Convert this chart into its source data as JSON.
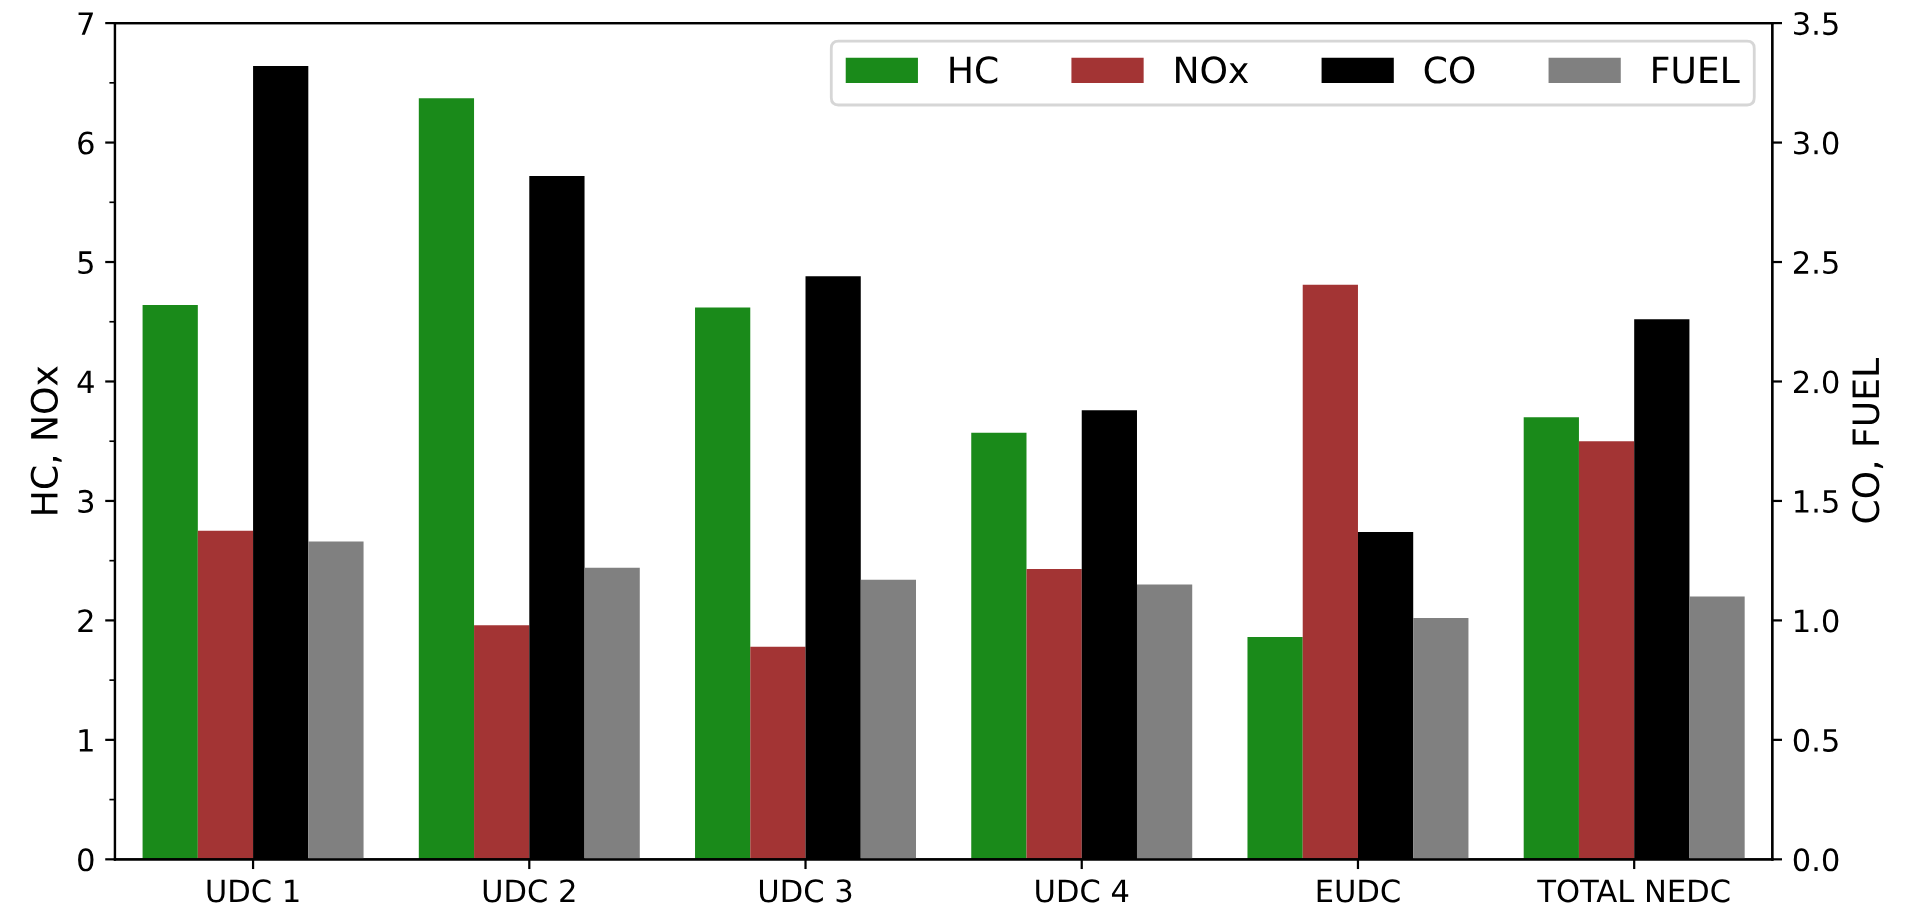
{
  "chart_data": {
    "type": "bar",
    "ylabel": "HC, NOx",
    "y2label": "CO, FUEL",
    "categories": [
      "UDC 1",
      "UDC 2",
      "UDC 3",
      "UDC 4",
      "EUDC",
      "TOTAL NEDC"
    ],
    "series": [
      {
        "name": "HC",
        "color": "#1a8a1a",
        "values": [
          4.64,
          6.37,
          4.62,
          3.57,
          1.86,
          3.7
        ]
      },
      {
        "name": "NOx",
        "color": "#a33434",
        "values": [
          2.75,
          1.96,
          1.78,
          2.43,
          4.81,
          3.5
        ]
      },
      {
        "name": "CO",
        "color": "#000000",
        "axis": "y2",
        "values": [
          3.32,
          2.86,
          2.44,
          1.88,
          1.37,
          2.26
        ]
      },
      {
        "name": "FUEL",
        "color": "#808080",
        "axis": "y2",
        "values": [
          1.33,
          1.22,
          1.17,
          1.15,
          1.01,
          1.1
        ]
      }
    ],
    "ylim": [
      0,
      7
    ],
    "yticks": [
      0,
      1,
      2,
      3,
      4,
      5,
      6,
      7
    ],
    "y2lim": [
      0,
      3.5
    ],
    "y2ticks": [
      {
        "value": 0,
        "label": "0.0"
      },
      0.5,
      {
        "value": 1,
        "label": "1.0"
      },
      1.5,
      {
        "value": 2,
        "label": "2.0"
      },
      2.5,
      {
        "value": 3,
        "label": "3.0"
      },
      3.5
    ],
    "legend": "top right",
    "grid": false
  }
}
